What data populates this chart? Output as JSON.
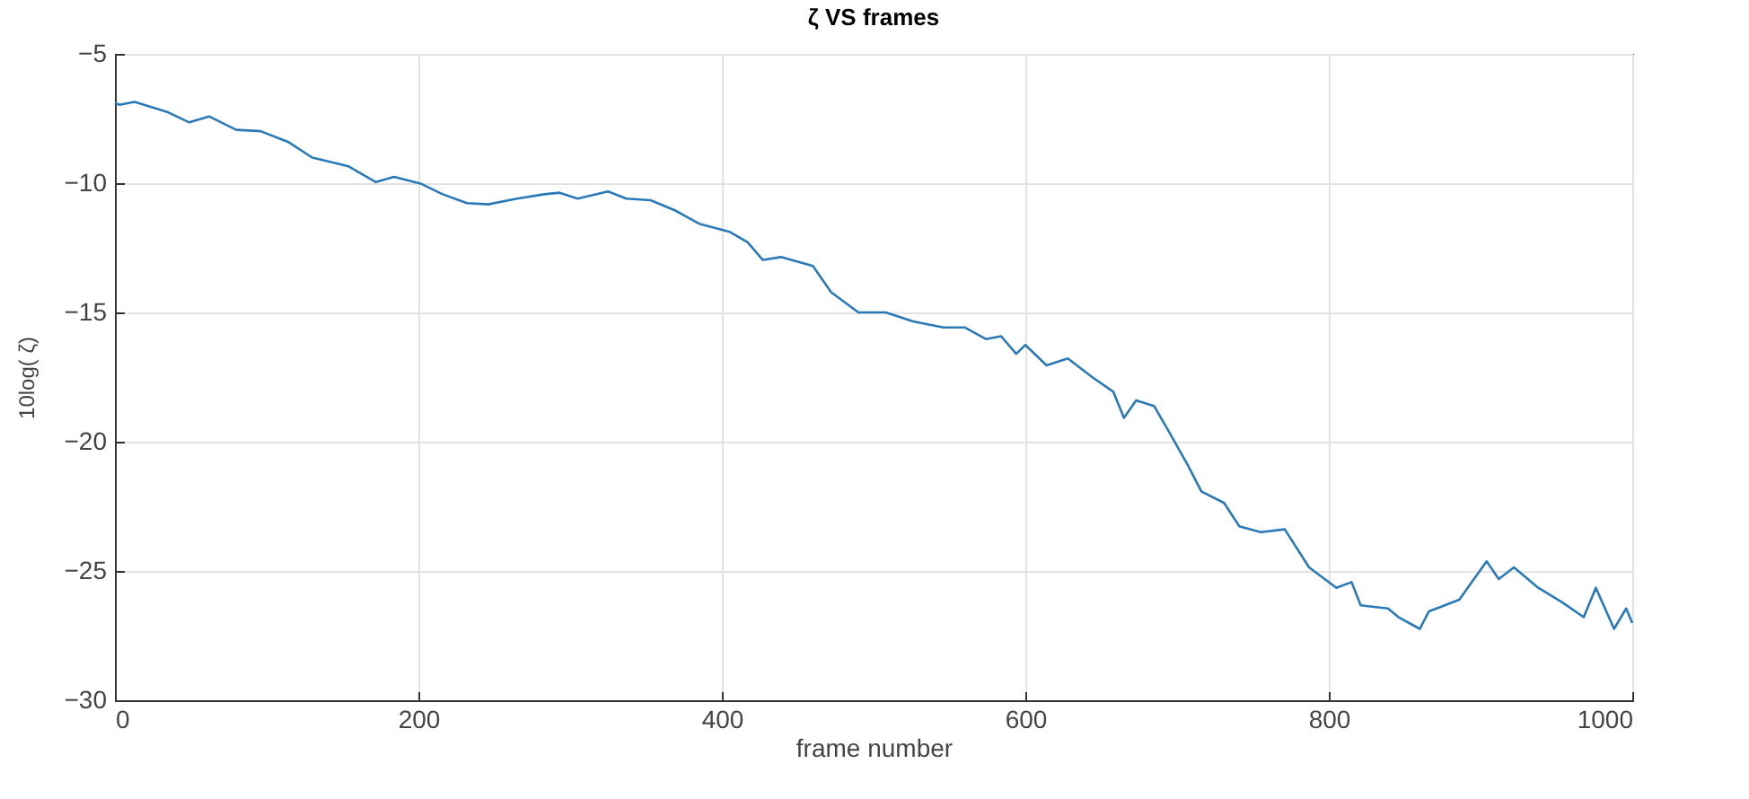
{
  "chart_data": {
    "type": "line",
    "title": "ζ VS frames",
    "xlabel": "frame number",
    "ylabel": "10log( ζ)",
    "x": [
      0,
      3,
      13,
      35,
      49,
      62,
      80,
      96,
      114,
      130,
      154,
      172,
      184,
      202,
      216,
      232,
      246,
      265,
      283,
      293,
      305,
      325,
      337,
      353,
      369,
      385,
      405,
      417,
      427,
      439,
      460,
      472,
      490,
      508,
      526,
      546,
      560,
      574,
      584,
      594,
      600,
      614,
      628,
      644,
      658,
      665,
      673,
      685,
      695,
      707,
      716,
      731,
      741,
      755,
      771,
      787,
      805,
      815,
      821,
      839,
      846,
      860,
      866,
      886,
      904,
      912,
      922,
      938,
      954,
      968,
      976,
      988,
      996,
      1000
    ],
    "series": [
      {
        "color": "#2a7ab8",
        "values": [
          -6.9,
          -6.97,
          -6.86,
          -7.26,
          -7.65,
          -7.42,
          -7.94,
          -7.99,
          -8.4,
          -9.01,
          -9.35,
          -9.96,
          -9.76,
          -10.03,
          -10.43,
          -10.77,
          -10.82,
          -10.6,
          -10.43,
          -10.37,
          -10.6,
          -10.32,
          -10.6,
          -10.66,
          -11.05,
          -11.57,
          -11.88,
          -12.29,
          -12.97,
          -12.86,
          -13.2,
          -14.22,
          -15.0,
          -15.0,
          -15.35,
          -15.58,
          -15.58,
          -16.03,
          -15.92,
          -16.6,
          -16.26,
          -17.05,
          -16.78,
          -17.5,
          -18.07,
          -19.08,
          -18.4,
          -18.63,
          -19.65,
          -20.9,
          -21.92,
          -22.37,
          -23.27,
          -23.5,
          -23.39,
          -24.86,
          -25.65,
          -25.43,
          -26.33,
          -26.45,
          -26.79,
          -27.24,
          -26.56,
          -26.11,
          -24.63,
          -25.31,
          -24.86,
          -25.65,
          -26.22,
          -26.79,
          -25.65,
          -27.24,
          -26.45,
          -27.01
        ]
      }
    ],
    "xlim": [
      0,
      1000
    ],
    "xticks": [
      0,
      200,
      400,
      600,
      800,
      1000
    ],
    "ylim": [
      -30,
      -5
    ],
    "yticks": [
      -30,
      -25,
      -20,
      -15,
      -10,
      -5
    ],
    "grid": true,
    "legend": false,
    "marker": "none",
    "line_style": "solid"
  }
}
